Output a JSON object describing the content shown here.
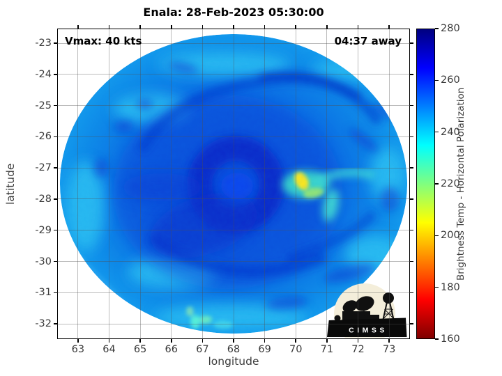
{
  "title": "Enala: 28-Feb-2023 05:30:00",
  "overlay": {
    "vmax_label": "Vmax: 40 kts",
    "time_away_label": "04:37 away"
  },
  "axes": {
    "xlabel": "longitude",
    "ylabel": "latitude",
    "x_ticks": [
      63,
      64,
      65,
      66,
      67,
      68,
      69,
      70,
      71,
      72,
      73
    ],
    "y_ticks": [
      -23,
      -24,
      -25,
      -26,
      -27,
      -28,
      -29,
      -30,
      -31,
      -32
    ],
    "x_range": [
      62.33,
      73.67
    ],
    "y_range": [
      -32.49,
      -22.53
    ],
    "grid": true
  },
  "colorbar": {
    "label": "Brightness Temp - Horizontal Polarization",
    "min": 160,
    "max": 280,
    "ticks": [
      280,
      260,
      240,
      220,
      200,
      180,
      160
    ],
    "gradient_stops": [
      "#800000 0%",
      "#ff0000 12.5%",
      "#ffff00 37.5%",
      "#00ffff 62.5%",
      "#0000ff 87.5%",
      "#000080 100%"
    ]
  },
  "logo": {
    "text": "CIMSS"
  },
  "chart_data": {
    "type": "heatmap",
    "title": "Enala: 28-Feb-2023 05:30:00",
    "xlabel": "longitude",
    "ylabel": "latitude",
    "x_range": [
      62.33,
      73.67
    ],
    "y_range": [
      -32.49,
      -22.53
    ],
    "x_ticks": [
      63,
      64,
      65,
      66,
      67,
      68,
      69,
      70,
      71,
      72,
      73
    ],
    "y_ticks": [
      -23,
      -24,
      -25,
      -26,
      -27,
      -28,
      -29,
      -30,
      -31,
      -32
    ],
    "value_label": "Brightness Temp - Horizontal Polarization (K)",
    "value_range": [
      160,
      280
    ],
    "colormap": "jet-reversed (280 K dark blue to 160 K dark red)",
    "annotations": [
      {
        "text": "Vmax: 40 kts",
        "position": "top-left"
      },
      {
        "text": "04:37 away",
        "position": "top-right"
      }
    ],
    "swath": {
      "shape": "elliptical microwave swath",
      "center_lon": 68.0,
      "center_lat": -27.55,
      "radius_lon_deg": 5.6,
      "radius_lat_deg": 4.85
    },
    "features": [
      {
        "name": "background swath (light azure blue)",
        "brightness_temp_K": 247
      },
      {
        "name": "inner-core dark ring around center",
        "lon": 68.0,
        "lat": -27.6,
        "radius_deg": 1.2,
        "brightness_temp_K": 270
      },
      {
        "name": "eye region (slightly warmer blue)",
        "lon": 68.1,
        "lat": -27.6,
        "brightness_temp_K": 263
      },
      {
        "name": "northern spiral band (dark blue)",
        "lon_range": [
          64.5,
          71.5
        ],
        "lat_range": [
          -24.8,
          -23.2
        ],
        "brightness_temp_K": 265
      },
      {
        "name": "southern spiral band (dark blue)",
        "lon_range": [
          65.5,
          70.5
        ],
        "lat_range": [
          -30.2,
          -29.0
        ],
        "brightness_temp_K": 265
      },
      {
        "name": "warm yellow core east of center",
        "lon": 70.4,
        "lat": -27.7,
        "brightness_temp_K": 205
      },
      {
        "name": "warm cyan-green streak extending east",
        "lon_range": [
          70.3,
          72.6
        ],
        "lat": -27.5,
        "brightness_temp_K": 228
      },
      {
        "name": "warm branch south of streak",
        "lon": 71.3,
        "lat": -28.3,
        "brightness_temp_K": 230
      },
      {
        "name": "warm cyan-green spots near south rim",
        "lon": 66.9,
        "lat": -32.1,
        "brightness_temp_K": 228
      }
    ],
    "legend_position": "right colorbar"
  }
}
